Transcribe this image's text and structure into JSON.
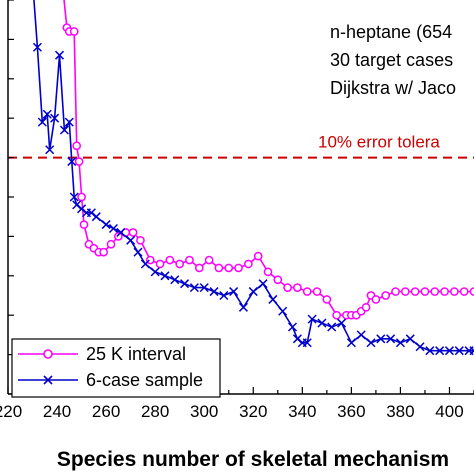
{
  "chart_data": {
    "type": "line",
    "xlabel": "Species number of skeletal mechanism",
    "xlim": [
      220,
      410
    ],
    "ylim": [
      0,
      1
    ],
    "x_ticks": [
      "220",
      "240",
      "260",
      "280",
      "300",
      "320",
      "340",
      "360",
      "380",
      "400"
    ],
    "annotations": [
      "n-heptane (654",
      "30 target cases",
      "Dijkstra w/ Jaco"
    ],
    "reference_line": {
      "label": "10% error tolera",
      "y": 0.6,
      "color": "#cc0000"
    },
    "legend_position": "bottom-left",
    "series": [
      {
        "name": "25 K interval",
        "color": "#ff00ff",
        "marker": "open-circle",
        "points": [
          [
            242,
            1.05
          ],
          [
            244,
            0.93
          ],
          [
            245,
            0.92
          ],
          [
            247,
            0.92
          ],
          [
            248,
            0.63
          ],
          [
            249,
            0.59
          ],
          [
            250,
            0.5
          ],
          [
            251,
            0.43
          ],
          [
            253,
            0.38
          ],
          [
            255,
            0.37
          ],
          [
            257,
            0.36
          ],
          [
            259,
            0.36
          ],
          [
            262,
            0.38
          ],
          [
            265,
            0.4
          ],
          [
            268,
            0.41
          ],
          [
            271,
            0.41
          ],
          [
            274,
            0.39
          ],
          [
            278,
            0.34
          ],
          [
            282,
            0.33
          ],
          [
            286,
            0.34
          ],
          [
            290,
            0.33
          ],
          [
            294,
            0.34
          ],
          [
            298,
            0.32
          ],
          [
            302,
            0.34
          ],
          [
            306,
            0.32
          ],
          [
            310,
            0.32
          ],
          [
            314,
            0.32
          ],
          [
            318,
            0.33
          ],
          [
            322,
            0.35
          ],
          [
            326,
            0.31
          ],
          [
            330,
            0.29
          ],
          [
            334,
            0.27
          ],
          [
            338,
            0.27
          ],
          [
            342,
            0.26
          ],
          [
            346,
            0.26
          ],
          [
            350,
            0.24
          ],
          [
            354,
            0.2
          ],
          [
            358,
            0.2
          ],
          [
            360,
            0.2
          ],
          [
            362,
            0.2
          ],
          [
            364,
            0.21
          ],
          [
            366,
            0.22
          ],
          [
            368,
            0.25
          ],
          [
            370,
            0.24
          ],
          [
            374,
            0.25
          ],
          [
            378,
            0.26
          ],
          [
            382,
            0.26
          ],
          [
            386,
            0.26
          ],
          [
            390,
            0.26
          ],
          [
            394,
            0.26
          ],
          [
            398,
            0.26
          ],
          [
            402,
            0.26
          ],
          [
            406,
            0.26
          ],
          [
            410,
            0.26
          ]
        ]
      },
      {
        "name": "6-case sample",
        "color": "#0000cc",
        "marker": "x",
        "points": [
          [
            230,
            1.05
          ],
          [
            232,
            0.88
          ],
          [
            234,
            0.69
          ],
          [
            236,
            0.71
          ],
          [
            237,
            0.62
          ],
          [
            239,
            0.7
          ],
          [
            241,
            0.86
          ],
          [
            243,
            0.67
          ],
          [
            245,
            0.69
          ],
          [
            246,
            0.59
          ],
          [
            247,
            0.5
          ],
          [
            248,
            0.48
          ],
          [
            250,
            0.47
          ],
          [
            252,
            0.46
          ],
          [
            254,
            0.46
          ],
          [
            256,
            0.45
          ],
          [
            260,
            0.43
          ],
          [
            263,
            0.42
          ],
          [
            266,
            0.41
          ],
          [
            270,
            0.39
          ],
          [
            273,
            0.36
          ],
          [
            276,
            0.33
          ],
          [
            280,
            0.31
          ],
          [
            284,
            0.3
          ],
          [
            288,
            0.29
          ],
          [
            292,
            0.28
          ],
          [
            296,
            0.27
          ],
          [
            300,
            0.27
          ],
          [
            304,
            0.26
          ],
          [
            308,
            0.25
          ],
          [
            312,
            0.26
          ],
          [
            316,
            0.22
          ],
          [
            320,
            0.26
          ],
          [
            324,
            0.28
          ],
          [
            328,
            0.24
          ],
          [
            332,
            0.21
          ],
          [
            336,
            0.17
          ],
          [
            338,
            0.14
          ],
          [
            340,
            0.13
          ],
          [
            342,
            0.13
          ],
          [
            344,
            0.19
          ],
          [
            348,
            0.18
          ],
          [
            352,
            0.17
          ],
          [
            356,
            0.18
          ],
          [
            360,
            0.13
          ],
          [
            364,
            0.15
          ],
          [
            368,
            0.13
          ],
          [
            372,
            0.14
          ],
          [
            376,
            0.14
          ],
          [
            380,
            0.13
          ],
          [
            384,
            0.14
          ],
          [
            388,
            0.12
          ],
          [
            392,
            0.11
          ],
          [
            396,
            0.11
          ],
          [
            400,
            0.11
          ],
          [
            404,
            0.11
          ],
          [
            408,
            0.11
          ],
          [
            410,
            0.11
          ]
        ]
      }
    ]
  }
}
